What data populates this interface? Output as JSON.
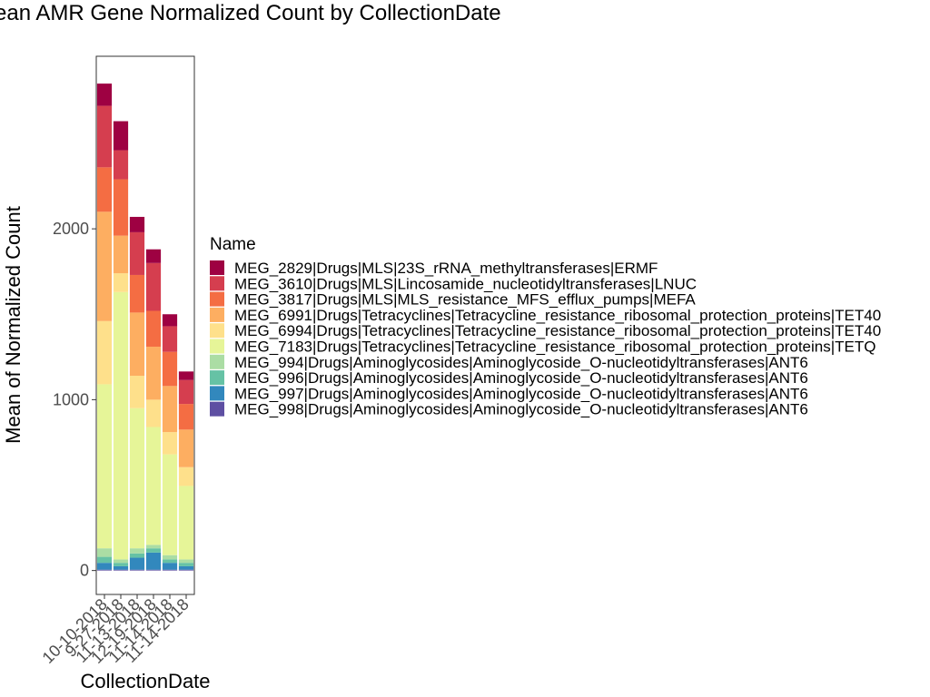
{
  "chart_data": {
    "type": "bar",
    "stacked": true,
    "title": "Mean AMR Gene Normalized Count by CollectionDate",
    "xlabel": "CollectionDate",
    "ylabel": "Mean of Normalized Count",
    "ylim": [
      -140,
      3010
    ],
    "yticks": [
      0,
      1000,
      2000
    ],
    "grid": false,
    "legend_title": "Name",
    "legend_position": "right",
    "categories": [
      "10-10-2018",
      "9-27-2018",
      "11-13-2018",
      "12-19-2018",
      "11-14-2018",
      "11-14-2018"
    ],
    "series": [
      {
        "name": "MEG_998|Drugs|Aminoglycosides|Aminoglycoside_O-nucleotidyltransferases|ANT6",
        "color": "#5E4FA2",
        "values": [
          5,
          5,
          5,
          5,
          5,
          5
        ]
      },
      {
        "name": "MEG_997|Drugs|Aminoglycosides|Aminoglycoside_O-nucleotidyltransferases|ANT6",
        "color": "#3288BD",
        "values": [
          40,
          20,
          70,
          100,
          40,
          20
        ]
      },
      {
        "name": "MEG_996|Drugs|Aminoglycosides|Aminoglycoside_O-nucleotidyltransferases|ANT6",
        "color": "#66C2A5",
        "values": [
          35,
          20,
          25,
          25,
          20,
          20
        ]
      },
      {
        "name": "MEG_994|Drugs|Aminoglycosides|Aminoglycoside_O-nucleotidyltransferases|ANT6",
        "color": "#ABDDA4",
        "values": [
          50,
          20,
          30,
          20,
          25,
          20
        ]
      },
      {
        "name": "MEG_7183|Drugs|Tetracyclines|Tetracycline_resistance_ribosomal_protection_proteins|TETQ",
        "color": "#E6F598",
        "values": [
          960,
          1565,
          820,
          690,
          590,
          430
        ]
      },
      {
        "name": "MEG_6994|Drugs|Tetracyclines|Tetracycline_resistance_ribosomal_protection_proteins|TET40",
        "color": "#FEE08B",
        "values": [
          370,
          110,
          190,
          160,
          130,
          110
        ]
      },
      {
        "name": "MEG_6991|Drugs|Tetracyclines|Tetracycline_resistance_ribosomal_protection_proteins|TET40",
        "color": "#FDAE61",
        "values": [
          640,
          220,
          370,
          310,
          270,
          220
        ]
      },
      {
        "name": "MEG_3817|Drugs|MLS|MLS_resistance_MFS_efflux_pumps|MEFA",
        "color": "#F46D43",
        "values": [
          260,
          330,
          220,
          210,
          200,
          150
        ]
      },
      {
        "name": "MEG_3610|Drugs|MLS|Lincosamide_nucleotidyltransferases|LNUC",
        "color": "#D53E4F",
        "values": [
          360,
          170,
          250,
          280,
          150,
          140
        ]
      },
      {
        "name": "MEG_2829|Drugs|MLS|23S_rRNA_methyltransferases|ERMF",
        "color": "#9E0142",
        "values": [
          130,
          170,
          90,
          80,
          70,
          50
        ]
      }
    ]
  }
}
